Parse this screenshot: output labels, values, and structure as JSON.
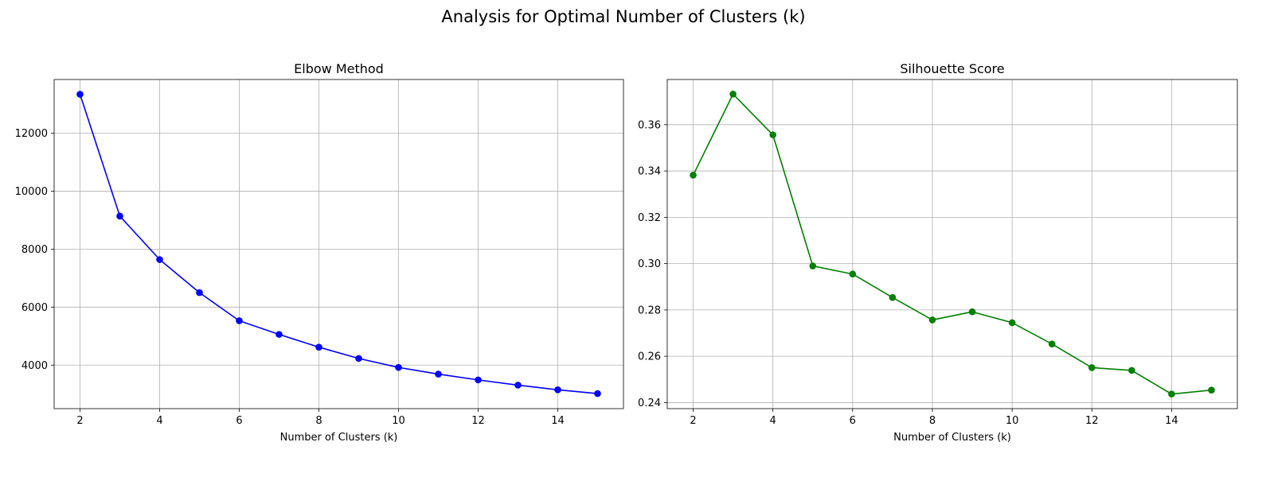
{
  "figure": {
    "suptitle": "Analysis for Optimal Number of Clusters (k)"
  },
  "chart_data": [
    {
      "type": "line",
      "title": "Elbow Method",
      "xlabel": "Number of Clusters (k)",
      "ylabel": "",
      "x": [
        2,
        3,
        4,
        5,
        6,
        7,
        8,
        9,
        10,
        11,
        12,
        13,
        14,
        15
      ],
      "series": [
        {
          "values": [
            13340,
            9140,
            7640,
            6500,
            5530,
            5060,
            4620,
            4230,
            3920,
            3690,
            3490,
            3310,
            3150,
            3020
          ],
          "color": "#0000ff",
          "marker": "circle"
        }
      ],
      "xlim": [
        1.35,
        15.65
      ],
      "ylim": [
        2500,
        13850
      ],
      "xticks": [
        2,
        4,
        6,
        8,
        10,
        12,
        14
      ],
      "yticks": [
        4000,
        6000,
        8000,
        10000,
        12000
      ],
      "grid": true
    },
    {
      "type": "line",
      "title": "Silhouette Score",
      "xlabel": "Number of Clusters (k)",
      "ylabel": "",
      "x": [
        2,
        3,
        4,
        5,
        6,
        7,
        8,
        9,
        10,
        11,
        12,
        13,
        14,
        15
      ],
      "series": [
        {
          "values": [
            0.3382,
            0.3732,
            0.3556,
            0.299,
            0.2955,
            0.2854,
            0.2757,
            0.2792,
            0.2745,
            0.2653,
            0.2551,
            0.2539,
            0.2437,
            0.2454
          ],
          "color": "#008000",
          "marker": "circle"
        }
      ],
      "xlim": [
        1.35,
        15.65
      ],
      "ylim": [
        0.2374,
        0.3795
      ],
      "xticks": [
        2,
        4,
        6,
        8,
        10,
        12,
        14
      ],
      "yticks": [
        0.24,
        0.26,
        0.28,
        0.3,
        0.32,
        0.34,
        0.36
      ],
      "ytick_labels": [
        "0.24",
        "0.26",
        "0.28",
        "0.30",
        "0.32",
        "0.34",
        "0.36"
      ],
      "grid": true
    }
  ]
}
